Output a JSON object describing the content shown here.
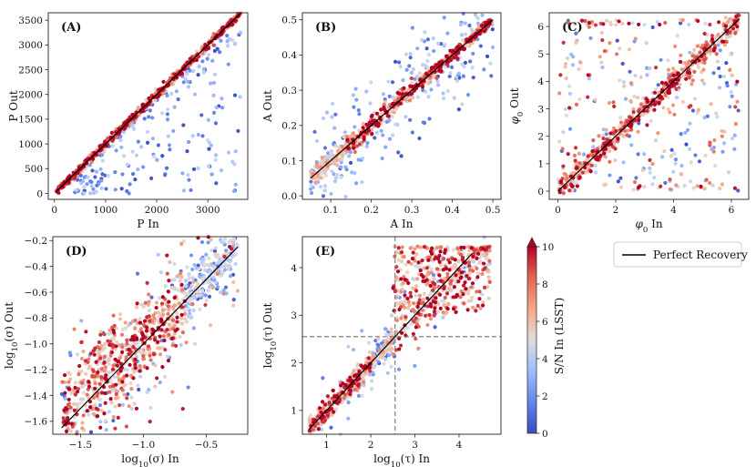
{
  "chart_data": [
    {
      "type": "scatter",
      "panel_label": "(A)",
      "xlabel": "P In",
      "ylabel": "P Out",
      "xlim": [
        -120,
        3780
      ],
      "ylim": [
        -120,
        3650
      ],
      "xticks": [
        0,
        1000,
        2000,
        3000
      ],
      "yticks": [
        0,
        500,
        1000,
        1500,
        2000,
        2500,
        3000,
        3500
      ],
      "tick_format": "int",
      "identity_line": {
        "x": [
          30,
          3650
        ],
        "y": [
          30,
          3650
        ]
      },
      "model": {
        "kind": "linear",
        "xmin": 30,
        "xmax": 3650,
        "n": 900,
        "tight_sd": 0.012,
        "outlier_fraction": 0.22,
        "outlier_mode": "below",
        "seed": 11
      },
      "annotations": []
    },
    {
      "type": "scatter",
      "panel_label": "(B)",
      "xlabel": "A In",
      "ylabel": "A Out",
      "xlim": [
        0.03,
        0.52
      ],
      "ylim": [
        -0.01,
        0.52
      ],
      "xticks": [
        0.1,
        0.2,
        0.3,
        0.4,
        0.5
      ],
      "yticks": [
        0.0,
        0.1,
        0.2,
        0.3,
        0.4,
        0.5
      ],
      "tick_format": "1",
      "identity_line": {
        "x": [
          0.05,
          0.5
        ],
        "y": [
          0.05,
          0.5
        ]
      },
      "model": {
        "kind": "linear",
        "xmin": 0.05,
        "xmax": 0.5,
        "n": 900,
        "tight_sd": 0.025,
        "outlier_fraction": 0.25,
        "outlier_mode": "both",
        "seed": 23
      },
      "annotations": []
    },
    {
      "type": "scatter",
      "panel_label": "(C)",
      "xlabel": "φ0 In",
      "ylabel": "φ0 Out",
      "xlim": [
        -0.3,
        6.6
      ],
      "ylim": [
        -0.3,
        6.5
      ],
      "xticks": [
        0,
        2,
        4,
        6
      ],
      "yticks": [
        0,
        1,
        2,
        3,
        4,
        5,
        6
      ],
      "tick_format": "int",
      "identity_line": {
        "x": [
          0,
          6.28
        ],
        "y": [
          0,
          6.28
        ]
      },
      "model": {
        "kind": "phase",
        "xmin": 0,
        "xmax": 6.28,
        "n": 900,
        "tight_sd": 0.03,
        "outlier_fraction": 0.3,
        "outlier_mode": "uniform",
        "seed": 37
      },
      "annotations": []
    },
    {
      "type": "scatter",
      "panel_label": "(D)",
      "xlabel": "log10(σ) In",
      "ylabel": "log10(σ) Out",
      "xlim": [
        -1.72,
        -0.17
      ],
      "ylim": [
        -1.7,
        -0.17
      ],
      "xticks": [
        -1.5,
        -1.0,
        -0.5
      ],
      "yticks": [
        -1.6,
        -1.4,
        -1.2,
        -1.0,
        -0.8,
        -0.6,
        -0.4,
        -0.2
      ],
      "tick_format": "signed",
      "identity_line": {
        "x": [
          -1.65,
          -0.25
        ],
        "y": [
          -1.65,
          -0.25
        ]
      },
      "model": {
        "kind": "sigma",
        "xmin": -1.65,
        "xmax": -0.25,
        "n": 1000,
        "tight_sd": 0.05,
        "outlier_fraction": 0.2,
        "outlier_mode": "spread",
        "seed": 53
      },
      "annotations": []
    },
    {
      "type": "scatter",
      "panel_label": "(E)",
      "xlabel": "log10(τ) In",
      "ylabel": "log10(τ) Out",
      "xlim": [
        0.45,
        4.95
      ],
      "ylim": [
        0.5,
        4.65
      ],
      "xticks": [
        1,
        2,
        3,
        4
      ],
      "yticks": [
        1,
        2,
        3,
        4
      ],
      "tick_format": "int",
      "identity_line": {
        "x": [
          0.6,
          4.3
        ],
        "y": [
          0.6,
          4.3
        ]
      },
      "model": {
        "kind": "tau",
        "xmin": 0.6,
        "xmax": 4.7,
        "n": 1000,
        "tight_sd": 0.06,
        "outlier_fraction": 0.1,
        "outlier_mode": "spread",
        "seed": 71
      },
      "annotations": [
        {
          "kind": "vline",
          "x": 2.55,
          "style": "dashed"
        },
        {
          "kind": "hline",
          "y": 2.55,
          "style": "dashed"
        }
      ]
    }
  ],
  "colorbar": {
    "label": "S/N In (LSST)",
    "ticks": [
      0,
      2,
      4,
      6,
      8,
      10
    ],
    "range": [
      0,
      10
    ],
    "extend": "max",
    "colormap": "coolwarm",
    "colors": [
      "#3b4cc0",
      "#7396f5",
      "#b0cbfc",
      "#dddcdc",
      "#f6bfa6",
      "#ea7b60",
      "#b40426"
    ]
  },
  "legend": {
    "entries": [
      {
        "label": "Perfect Recovery",
        "line_color": "#000000"
      }
    ],
    "placement": "upper-right"
  }
}
